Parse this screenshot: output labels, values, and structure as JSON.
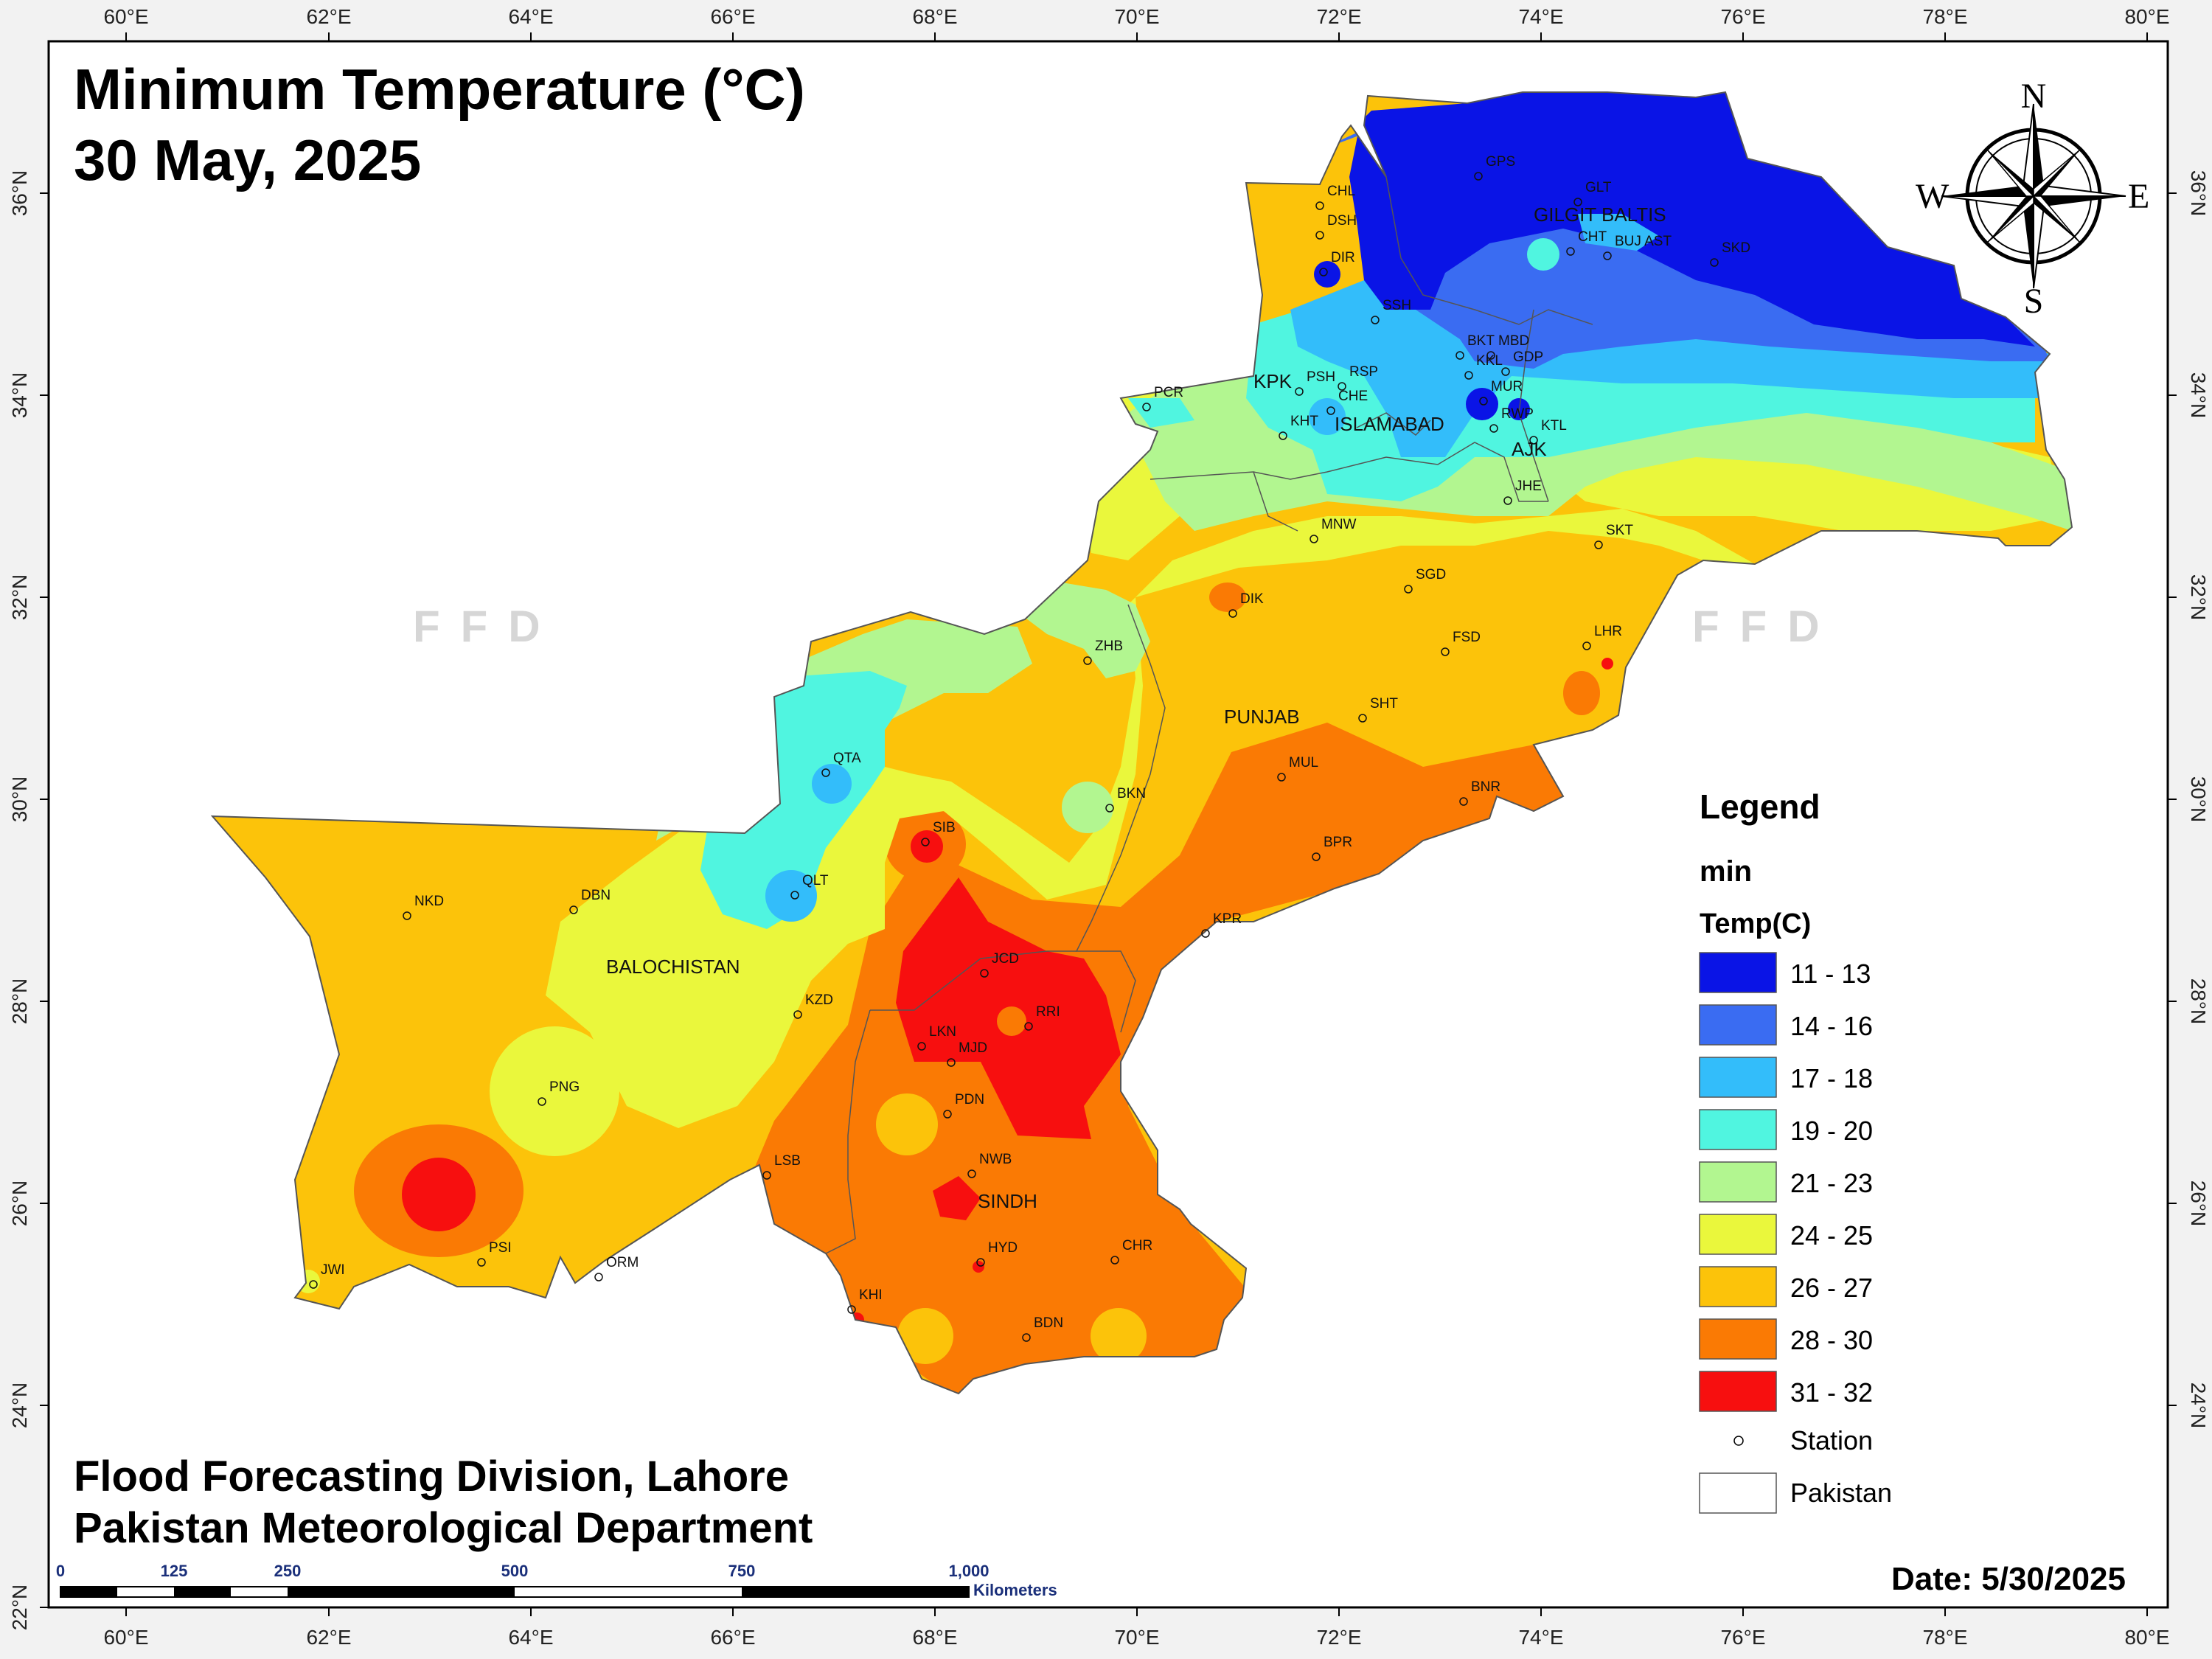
{
  "title": {
    "line1": "Minimum Temperature (°C)",
    "line2": "30 May, 2025"
  },
  "footer": {
    "line1": "Flood Forecasting Division, Lahore",
    "line2": "Pakistan Meteorological Department"
  },
  "date_label": "Date: 5/30/2025",
  "watermark": "FFD",
  "compass": {
    "n": "N",
    "s": "S",
    "e": "E",
    "w": "W"
  },
  "axes": {
    "lon_ticks": [
      "60°E",
      "62°E",
      "64°E",
      "66°E",
      "68°E",
      "70°E",
      "72°E",
      "74°E",
      "76°E",
      "78°E",
      "80°E"
    ],
    "lat_ticks": [
      "36°N",
      "34°N",
      "32°N",
      "30°N",
      "28°N",
      "26°N",
      "24°N",
      "22°N"
    ]
  },
  "regions": {
    "gilgit": "GILGIT BALTIS",
    "kpk": "KPK",
    "islamabad": "ISLAMABAD",
    "ajk": "AJK",
    "punjab": "PUNJAB",
    "balochistan": "BALOCHISTAN",
    "sindh": "SINDH"
  },
  "stations": [
    "GPS",
    "CHL",
    "GLT",
    "DSH",
    "GILGIT BALTIS",
    "BUJ AST",
    "CHT",
    "SKD",
    "DIR",
    "SSH",
    "BKT",
    "MBD",
    "KKL",
    "GDP",
    "MUR",
    "PCR",
    "PSH",
    "RSP",
    "CHE",
    "KHT",
    "RWP",
    "KTL",
    "JHE",
    "SKT",
    "MNW",
    "SGD",
    "DIK",
    "LHR",
    "ZHB",
    "FSD",
    "SHT",
    "QTA",
    "MUL",
    "BNR",
    "BKN",
    "SIB",
    "QLT",
    "NKD",
    "DBN",
    "BPR",
    "KPR",
    "JCD",
    "KZD",
    "RRI",
    "LKN",
    "MJD",
    "PNG",
    "PDN",
    "NWB",
    "LSB",
    "HYD",
    "CHR",
    "PSI",
    "ORM",
    "JWI",
    "KHI",
    "BDN"
  ],
  "legend": {
    "title": "Legend",
    "subtitle": "min",
    "field": "Temp(C)",
    "classes": [
      {
        "label": "11 - 13",
        "color": "#0a14e6"
      },
      {
        "label": "14 - 16",
        "color": "#3a6cf2"
      },
      {
        "label": "17 - 18",
        "color": "#33bdfa"
      },
      {
        "label": "19 - 20",
        "color": "#50f5e0"
      },
      {
        "label": "21 - 23",
        "color": "#b2f690"
      },
      {
        "label": "24 - 25",
        "color": "#eaf73c"
      },
      {
        "label": "26 - 27",
        "color": "#fcc30a"
      },
      {
        "label": "28 - 30",
        "color": "#fa7a04"
      },
      {
        "label": "31 - 32",
        "color": "#f70f0f"
      }
    ],
    "station_label": "Station",
    "boundary_label": "Pakistan"
  },
  "scale_bar": {
    "ticks": [
      "0",
      "125",
      "250",
      "500",
      "750",
      "1,000"
    ],
    "unit": "Kilometers"
  }
}
